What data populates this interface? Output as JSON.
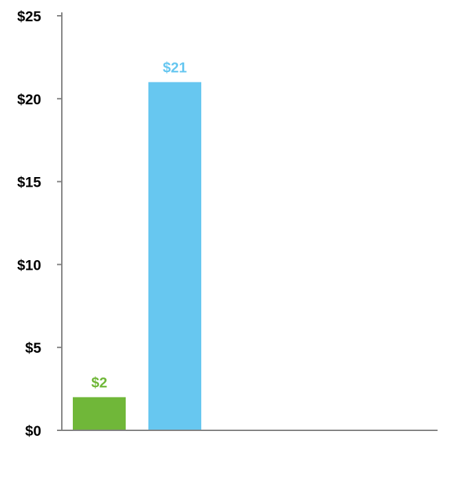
{
  "chart_data": {
    "type": "bar",
    "categories": [
      "",
      ""
    ],
    "values": [
      2,
      21
    ],
    "value_labels": [
      "$2",
      "$21"
    ],
    "bar_colors": [
      "#70b739",
      "#67c7f0"
    ],
    "title": "",
    "xlabel": "",
    "ylabel": "",
    "ylim": [
      0,
      25
    ],
    "yticks": [
      0,
      5,
      10,
      15,
      20,
      25
    ],
    "ytick_labels": [
      "$0",
      "$5",
      "$10",
      "$15",
      "$20",
      "$25"
    ],
    "grid": false,
    "legend": "none"
  },
  "colors": {
    "axis": "#7f7f7f",
    "tick_label": "#000000"
  }
}
